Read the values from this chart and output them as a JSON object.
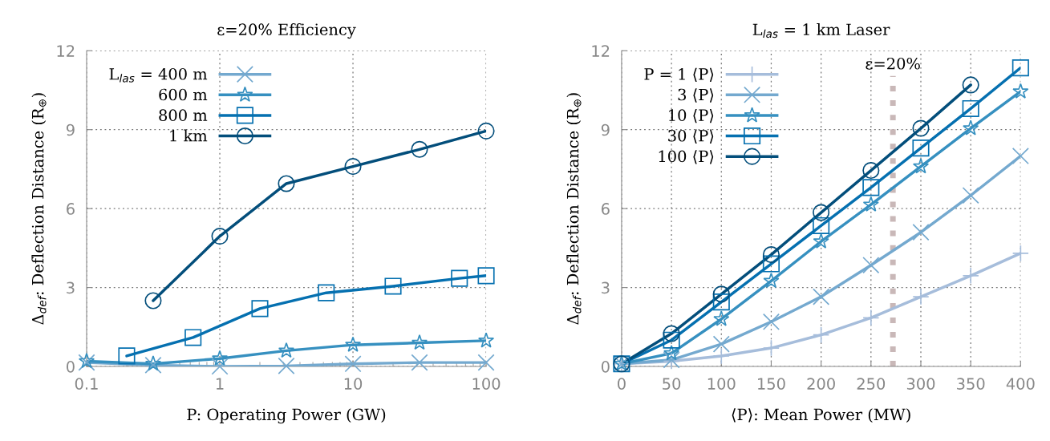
{
  "chart_data": [
    {
      "type": "line",
      "title": "ε=20% Efficiency",
      "xlabel": "P: Operating Power (GW)",
      "ylabel": "Δ$_{def}$: Deflection Distance (R$_{⊕}$)",
      "log": "x",
      "xlim": [
        0.1,
        100
      ],
      "xticks": [
        0.1,
        1,
        10,
        100
      ],
      "ylim": [
        0,
        12
      ],
      "yticks": [
        0,
        3,
        6,
        9,
        12
      ],
      "grid": true,
      "legend": "top left",
      "series": [
        {
          "name": "L$_{las}$ = 400 m",
          "color": "#74a9cf",
          "marker": "cross",
          "x": [
            0.1,
            0.316,
            1,
            3.16,
            10,
            31.6,
            100
          ],
          "values": [
            0.15,
            0.05,
            0.0,
            0.02,
            0.1,
            0.15,
            0.15
          ]
        },
        {
          "name": "600 m",
          "color": "#3690c0",
          "marker": "star",
          "x": [
            0.1,
            0.316,
            1,
            3.16,
            10,
            31.6,
            100
          ],
          "values": [
            0.2,
            0.1,
            0.3,
            0.6,
            0.82,
            0.9,
            0.98
          ]
        },
        {
          "name": "800 m",
          "color": "#0570b0",
          "marker": "square",
          "x": [
            0.2,
            0.63,
            2,
            6.3,
            20,
            63,
            100
          ],
          "values": [
            0.4,
            1.1,
            2.2,
            2.8,
            3.05,
            3.35,
            3.45
          ]
        },
        {
          "name": "1 km",
          "color": "#034e7b",
          "marker": "circle",
          "x": [
            0.316,
            1,
            3.16,
            10,
            31.6,
            100
          ],
          "values": [
            2.5,
            4.95,
            6.95,
            7.6,
            8.25,
            8.95
          ]
        }
      ]
    },
    {
      "type": "line",
      "title": "L$_{las}$ = 1 km Laser",
      "xlabel": "⟨P⟩: Mean Power (MW)",
      "ylabel": "Δ$_{def}$: Deflection Distance (R$_{⊕}$)",
      "xlim": [
        0,
        400
      ],
      "xticks": [
        0,
        50,
        100,
        150,
        200,
        250,
        300,
        350,
        400
      ],
      "ylim": [
        0,
        12
      ],
      "yticks": [
        0,
        3,
        6,
        9,
        12
      ],
      "grid": true,
      "legend": "top left",
      "ref_lines": [
        {
          "axis": "x",
          "value": 272,
          "color": "#c9b8b8",
          "line_style": "dotted"
        }
      ],
      "annotations": [
        "ε=20%"
      ],
      "x": [
        0,
        50,
        100,
        150,
        200,
        250,
        300,
        350,
        400
      ],
      "series": [
        {
          "name": "P = 1 ⟨P⟩",
          "color": "#a6bddb",
          "marker": "plus",
          "values": [
            0.1,
            0.2,
            0.4,
            0.7,
            1.2,
            1.85,
            2.65,
            3.45,
            4.3
          ]
        },
        {
          "name": "3 ⟨P⟩",
          "color": "#74a9cf",
          "marker": "cross",
          "values": [
            0.1,
            0.25,
            0.85,
            1.7,
            2.65,
            3.85,
            5.1,
            6.5,
            8.0
          ]
        },
        {
          "name": "10 ⟨P⟩",
          "color": "#3690c0",
          "marker": "star",
          "values": [
            0.1,
            0.5,
            1.8,
            3.25,
            4.75,
            6.15,
            7.6,
            9.05,
            10.45
          ]
        },
        {
          "name": "30 ⟨P⟩",
          "color": "#0570b0",
          "marker": "square",
          "values": [
            0.1,
            1.0,
            2.45,
            3.9,
            5.35,
            6.8,
            8.3,
            9.8,
            11.35
          ]
        },
        {
          "name": "100 ⟨P⟩",
          "color": "#034e7b",
          "marker": "circle",
          "values": [
            0.1,
            1.25,
            2.75,
            4.25,
            5.85,
            7.45,
            9.05,
            10.7,
            null
          ]
        }
      ]
    }
  ]
}
